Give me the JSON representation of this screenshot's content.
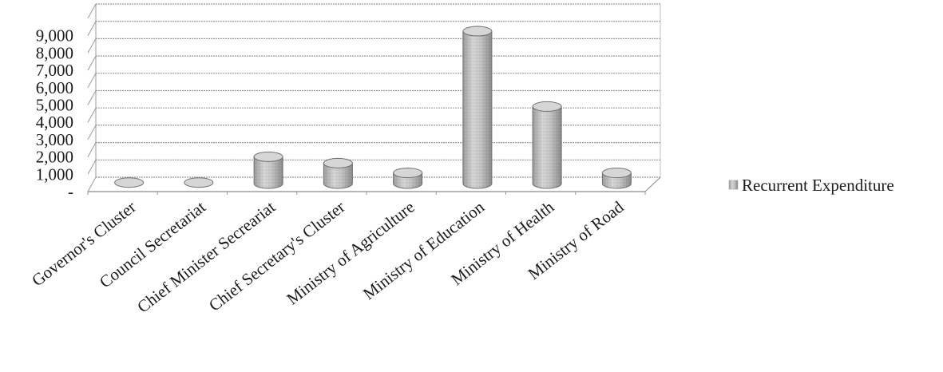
{
  "chart_data": {
    "type": "bar",
    "categories": [
      "Governor's Cluster",
      "Council Secretariat",
      "Chief Minister Secreariat",
      "Chief Secretary's Cluster",
      "Ministry of Agriculture",
      "Ministry of Education",
      "Ministry of Health",
      "Ministry of Road"
    ],
    "series": [
      {
        "name": "Recurrent Expenditure",
        "values": [
          60,
          60,
          1550,
          1180,
          620,
          8800,
          4450,
          620
        ]
      }
    ],
    "yticks": [
      "-",
      "1,000",
      "2,000",
      "3,000",
      "4,000",
      "5,000",
      "6,000",
      "7,000",
      "8,000",
      "9,000"
    ],
    "ylim": [
      0,
      10000
    ],
    "grid": true,
    "legend": "right",
    "style": "3d-cylinder",
    "colors": {
      "bar": "#c9c9c9",
      "bar_dark": "#8c8c8c",
      "grid": "#9a9a9a"
    }
  }
}
